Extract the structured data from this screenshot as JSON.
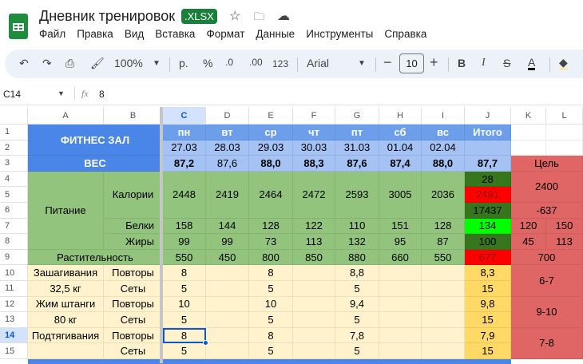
{
  "app": {
    "title": "Дневник тренировок",
    "badge": ".XLSX",
    "icons": [
      "star-icon",
      "move-to-folder-icon",
      "cloud-saved-icon"
    ]
  },
  "menu": [
    "Файл",
    "Правка",
    "Вид",
    "Вставка",
    "Формат",
    "Данные",
    "Инструменты",
    "Справка"
  ],
  "toolbar": {
    "zoom": "100%",
    "currency": "р.",
    "percent": "%",
    "dec_less": ".0",
    "dec_more": ".00",
    "number_format": "123",
    "font": "Arial",
    "font_size": "10"
  },
  "formula_bar": {
    "cell_ref": "C14",
    "fx": "fx",
    "value": "8"
  },
  "sheet": {
    "columns": [
      "A",
      "B",
      "C",
      "D",
      "E",
      "F",
      "G",
      "H",
      "I",
      "J",
      "K",
      "L"
    ],
    "rows": [
      "1",
      "2",
      "3",
      "4",
      "5",
      "6",
      "7",
      "8",
      "9",
      "10",
      "11",
      "12",
      "13",
      "14",
      "15"
    ],
    "selected_cell": "C14",
    "colors": {
      "header_blue": "#4a86e8",
      "day_blue": "#6d9eeb",
      "light_blue": "#a4c2f4",
      "green": "#93c47d",
      "dark_green": "#38761d",
      "bright_green": "#00ff00",
      "red": "#ff0000",
      "goal_red": "#e06666",
      "cream": "#fff2cc",
      "yellow": "#ffd966"
    },
    "cells": [
      {
        "r": 1,
        "c": 1,
        "rs": 2,
        "cs": 2,
        "t": "ФИТНЕС ЗАЛ",
        "k": "hb"
      },
      {
        "r": 1,
        "c": 3,
        "t": "пн",
        "k": "day"
      },
      {
        "r": 1,
        "c": 4,
        "t": "вт",
        "k": "day"
      },
      {
        "r": 1,
        "c": 5,
        "t": "ср",
        "k": "day"
      },
      {
        "r": 1,
        "c": 6,
        "t": "чт",
        "k": "day"
      },
      {
        "r": 1,
        "c": 7,
        "t": "пт",
        "k": "day"
      },
      {
        "r": 1,
        "c": 8,
        "t": "сб",
        "k": "day"
      },
      {
        "r": 1,
        "c": 9,
        "t": "вс",
        "k": "day"
      },
      {
        "r": 1,
        "c": 10,
        "t": "Итого",
        "k": "day"
      },
      {
        "r": 2,
        "c": 3,
        "t": "27.03",
        "k": "lb"
      },
      {
        "r": 2,
        "c": 4,
        "t": "28.03",
        "k": "lb"
      },
      {
        "r": 2,
        "c": 5,
        "t": "29.03",
        "k": "lb"
      },
      {
        "r": 2,
        "c": 6,
        "t": "30.03",
        "k": "lb"
      },
      {
        "r": 2,
        "c": 7,
        "t": "31.03",
        "k": "lb"
      },
      {
        "r": 2,
        "c": 8,
        "t": "01.04",
        "k": "lb"
      },
      {
        "r": 2,
        "c": 9,
        "t": "02.04",
        "k": "lb"
      },
      {
        "r": 2,
        "c": 10,
        "t": "",
        "k": "lb"
      },
      {
        "r": 3,
        "c": 1,
        "cs": 2,
        "t": "ВЕС",
        "k": "hb"
      },
      {
        "r": 3,
        "c": 3,
        "t": "87,2",
        "k": "lbb"
      },
      {
        "r": 3,
        "c": 4,
        "t": "87,6",
        "k": "lb"
      },
      {
        "r": 3,
        "c": 5,
        "t": "88,0",
        "k": "lbb"
      },
      {
        "r": 3,
        "c": 6,
        "t": "88,3",
        "k": "lbb"
      },
      {
        "r": 3,
        "c": 7,
        "t": "87,6",
        "k": "lbb"
      },
      {
        "r": 3,
        "c": 8,
        "t": "87,4",
        "k": "lbb"
      },
      {
        "r": 3,
        "c": 9,
        "t": "88,0",
        "k": "lbb"
      },
      {
        "r": 3,
        "c": 10,
        "t": "87,7",
        "k": "lbb"
      },
      {
        "r": 3,
        "c": 11,
        "cs": 2,
        "t": "Цель",
        "k": "goal"
      },
      {
        "r": 4,
        "c": 1,
        "rs": 5,
        "t": "Питание",
        "k": "g"
      },
      {
        "r": 4,
        "c": 2,
        "rs": 3,
        "t": "Калории",
        "k": "g"
      },
      {
        "r": 4,
        "c": 3,
        "rs": 3,
        "t": "2448",
        "k": "g"
      },
      {
        "r": 4,
        "c": 4,
        "rs": 3,
        "t": "2419",
        "k": "g"
      },
      {
        "r": 4,
        "c": 5,
        "rs": 3,
        "t": "2464",
        "k": "g"
      },
      {
        "r": 4,
        "c": 6,
        "rs": 3,
        "t": "2472",
        "k": "g"
      },
      {
        "r": 4,
        "c": 7,
        "rs": 3,
        "t": "2593",
        "k": "g"
      },
      {
        "r": 4,
        "c": 8,
        "rs": 3,
        "t": "3005",
        "k": "g"
      },
      {
        "r": 4,
        "c": 9,
        "rs": 3,
        "t": "2036",
        "k": "g"
      },
      {
        "r": 4,
        "c": 10,
        "t": "28",
        "k": "dg"
      },
      {
        "r": 5,
        "c": 10,
        "t": "2491",
        "k": "red"
      },
      {
        "r": 6,
        "c": 10,
        "t": "17437",
        "k": "dg"
      },
      {
        "r": 4,
        "c": 11,
        "rs": 2,
        "cs": 2,
        "t": "2400",
        "k": "goal"
      },
      {
        "r": 6,
        "c": 11,
        "cs": 2,
        "t": "-637",
        "k": "goal"
      },
      {
        "r": 7,
        "c": 2,
        "t": "Белки",
        "k": "gr"
      },
      {
        "r": 7,
        "c": 3,
        "t": "158",
        "k": "g"
      },
      {
        "r": 7,
        "c": 4,
        "t": "144",
        "k": "g"
      },
      {
        "r": 7,
        "c": 5,
        "t": "128",
        "k": "g"
      },
      {
        "r": 7,
        "c": 6,
        "t": "122",
        "k": "g"
      },
      {
        "r": 7,
        "c": 7,
        "t": "110",
        "k": "g"
      },
      {
        "r": 7,
        "c": 8,
        "t": "151",
        "k": "g"
      },
      {
        "r": 7,
        "c": 9,
        "t": "128",
        "k": "g"
      },
      {
        "r": 7,
        "c": 10,
        "t": "134",
        "k": "lime"
      },
      {
        "r": 7,
        "c": 11,
        "t": "120",
        "k": "goal"
      },
      {
        "r": 7,
        "c": 12,
        "t": "150",
        "k": "goal"
      },
      {
        "r": 8,
        "c": 2,
        "t": "Жиры",
        "k": "gr"
      },
      {
        "r": 8,
        "c": 3,
        "t": "99",
        "k": "g"
      },
      {
        "r": 8,
        "c": 4,
        "t": "99",
        "k": "g"
      },
      {
        "r": 8,
        "c": 5,
        "t": "73",
        "k": "g"
      },
      {
        "r": 8,
        "c": 6,
        "t": "113",
        "k": "g"
      },
      {
        "r": 8,
        "c": 7,
        "t": "132",
        "k": "g"
      },
      {
        "r": 8,
        "c": 8,
        "t": "95",
        "k": "g"
      },
      {
        "r": 8,
        "c": 9,
        "t": "87",
        "k": "g"
      },
      {
        "r": 8,
        "c": 10,
        "t": "100",
        "k": "dg"
      },
      {
        "r": 8,
        "c": 11,
        "t": "45",
        "k": "goal"
      },
      {
        "r": 8,
        "c": 12,
        "t": "113",
        "k": "goal"
      },
      {
        "r": 9,
        "c": 1,
        "cs": 2,
        "t": "Растительность",
        "k": "g"
      },
      {
        "r": 9,
        "c": 3,
        "t": "550",
        "k": "g"
      },
      {
        "r": 9,
        "c": 4,
        "t": "450",
        "k": "g"
      },
      {
        "r": 9,
        "c": 5,
        "t": "800",
        "k": "g"
      },
      {
        "r": 9,
        "c": 6,
        "t": "850",
        "k": "g"
      },
      {
        "r": 9,
        "c": 7,
        "t": "880",
        "k": "g"
      },
      {
        "r": 9,
        "c": 8,
        "t": "660",
        "k": "g"
      },
      {
        "r": 9,
        "c": 9,
        "t": "550",
        "k": "g"
      },
      {
        "r": 9,
        "c": 10,
        "t": "677",
        "k": "red"
      },
      {
        "r": 9,
        "c": 11,
        "cs": 2,
        "t": "700",
        "k": "goal"
      },
      {
        "r": 10,
        "c": 1,
        "t": "Зашагивания",
        "k": "y"
      },
      {
        "r": 10,
        "c": 2,
        "t": "Повторы",
        "k": "y"
      },
      {
        "r": 10,
        "c": 3,
        "t": "8",
        "k": "y"
      },
      {
        "r": 10,
        "c": 4,
        "t": "",
        "k": "y"
      },
      {
        "r": 10,
        "c": 5,
        "t": "8",
        "k": "y"
      },
      {
        "r": 10,
        "c": 6,
        "t": "",
        "k": "y"
      },
      {
        "r": 10,
        "c": 7,
        "t": "8,8",
        "k": "y"
      },
      {
        "r": 10,
        "c": 8,
        "t": "",
        "k": "y"
      },
      {
        "r": 10,
        "c": 9,
        "t": "",
        "k": "y"
      },
      {
        "r": 10,
        "c": 10,
        "t": "8,3",
        "k": "yy"
      },
      {
        "r": 10,
        "c": 11,
        "rs": 2,
        "cs": 2,
        "t": "6-7",
        "k": "goal"
      },
      {
        "r": 11,
        "c": 1,
        "t": "32,5 кг",
        "k": "y"
      },
      {
        "r": 11,
        "c": 2,
        "t": "Сеты",
        "k": "y"
      },
      {
        "r": 11,
        "c": 3,
        "t": "5",
        "k": "y"
      },
      {
        "r": 11,
        "c": 4,
        "t": "",
        "k": "y"
      },
      {
        "r": 11,
        "c": 5,
        "t": "5",
        "k": "y"
      },
      {
        "r": 11,
        "c": 6,
        "t": "",
        "k": "y"
      },
      {
        "r": 11,
        "c": 7,
        "t": "5",
        "k": "y"
      },
      {
        "r": 11,
        "c": 8,
        "t": "",
        "k": "y"
      },
      {
        "r": 11,
        "c": 9,
        "t": "",
        "k": "y"
      },
      {
        "r": 11,
        "c": 10,
        "t": "15",
        "k": "yy"
      },
      {
        "r": 12,
        "c": 1,
        "t": "Жим штанги",
        "k": "y"
      },
      {
        "r": 12,
        "c": 2,
        "t": "Повторы",
        "k": "y"
      },
      {
        "r": 12,
        "c": 3,
        "t": "10",
        "k": "y"
      },
      {
        "r": 12,
        "c": 4,
        "t": "",
        "k": "y"
      },
      {
        "r": 12,
        "c": 5,
        "t": "10",
        "k": "y"
      },
      {
        "r": 12,
        "c": 6,
        "t": "",
        "k": "y"
      },
      {
        "r": 12,
        "c": 7,
        "t": "9,4",
        "k": "y"
      },
      {
        "r": 12,
        "c": 8,
        "t": "",
        "k": "y"
      },
      {
        "r": 12,
        "c": 9,
        "t": "",
        "k": "y"
      },
      {
        "r": 12,
        "c": 10,
        "t": "9,8",
        "k": "yy"
      },
      {
        "r": 12,
        "c": 11,
        "rs": 2,
        "cs": 2,
        "t": "9-10",
        "k": "goal"
      },
      {
        "r": 13,
        "c": 1,
        "t": "80 кг",
        "k": "y"
      },
      {
        "r": 13,
        "c": 2,
        "t": "Сеты",
        "k": "y"
      },
      {
        "r": 13,
        "c": 3,
        "t": "5",
        "k": "y"
      },
      {
        "r": 13,
        "c": 4,
        "t": "",
        "k": "y"
      },
      {
        "r": 13,
        "c": 5,
        "t": "5",
        "k": "y"
      },
      {
        "r": 13,
        "c": 6,
        "t": "",
        "k": "y"
      },
      {
        "r": 13,
        "c": 7,
        "t": "5",
        "k": "y"
      },
      {
        "r": 13,
        "c": 8,
        "t": "",
        "k": "y"
      },
      {
        "r": 13,
        "c": 9,
        "t": "",
        "k": "y"
      },
      {
        "r": 13,
        "c": 10,
        "t": "15",
        "k": "yy"
      },
      {
        "r": 14,
        "c": 1,
        "t": "Подтягивания",
        "k": "y"
      },
      {
        "r": 14,
        "c": 2,
        "t": "Повторы",
        "k": "y"
      },
      {
        "r": 14,
        "c": 3,
        "t": "8",
        "k": "y"
      },
      {
        "r": 14,
        "c": 4,
        "t": "",
        "k": "y"
      },
      {
        "r": 14,
        "c": 5,
        "t": "8",
        "k": "y"
      },
      {
        "r": 14,
        "c": 6,
        "t": "",
        "k": "y"
      },
      {
        "r": 14,
        "c": 7,
        "t": "7,8",
        "k": "y"
      },
      {
        "r": 14,
        "c": 8,
        "t": "",
        "k": "y"
      },
      {
        "r": 14,
        "c": 9,
        "t": "",
        "k": "y"
      },
      {
        "r": 14,
        "c": 10,
        "t": "7,9",
        "k": "yy"
      },
      {
        "r": 14,
        "c": 11,
        "rs": 2,
        "cs": 2,
        "t": "7-8",
        "k": "goal"
      },
      {
        "r": 15,
        "c": 1,
        "t": "",
        "k": "y"
      },
      {
        "r": 15,
        "c": 2,
        "t": "Сеты",
        "k": "y"
      },
      {
        "r": 15,
        "c": 3,
        "t": "5",
        "k": "y"
      },
      {
        "r": 15,
        "c": 4,
        "t": "",
        "k": "y"
      },
      {
        "r": 15,
        "c": 5,
        "t": "5",
        "k": "y"
      },
      {
        "r": 15,
        "c": 6,
        "t": "",
        "k": "y"
      },
      {
        "r": 15,
        "c": 7,
        "t": "5",
        "k": "y"
      },
      {
        "r": 15,
        "c": 8,
        "t": "",
        "k": "y"
      },
      {
        "r": 15,
        "c": 9,
        "t": "",
        "k": "y"
      },
      {
        "r": 15,
        "c": 10,
        "t": "15",
        "k": "yy"
      }
    ]
  }
}
